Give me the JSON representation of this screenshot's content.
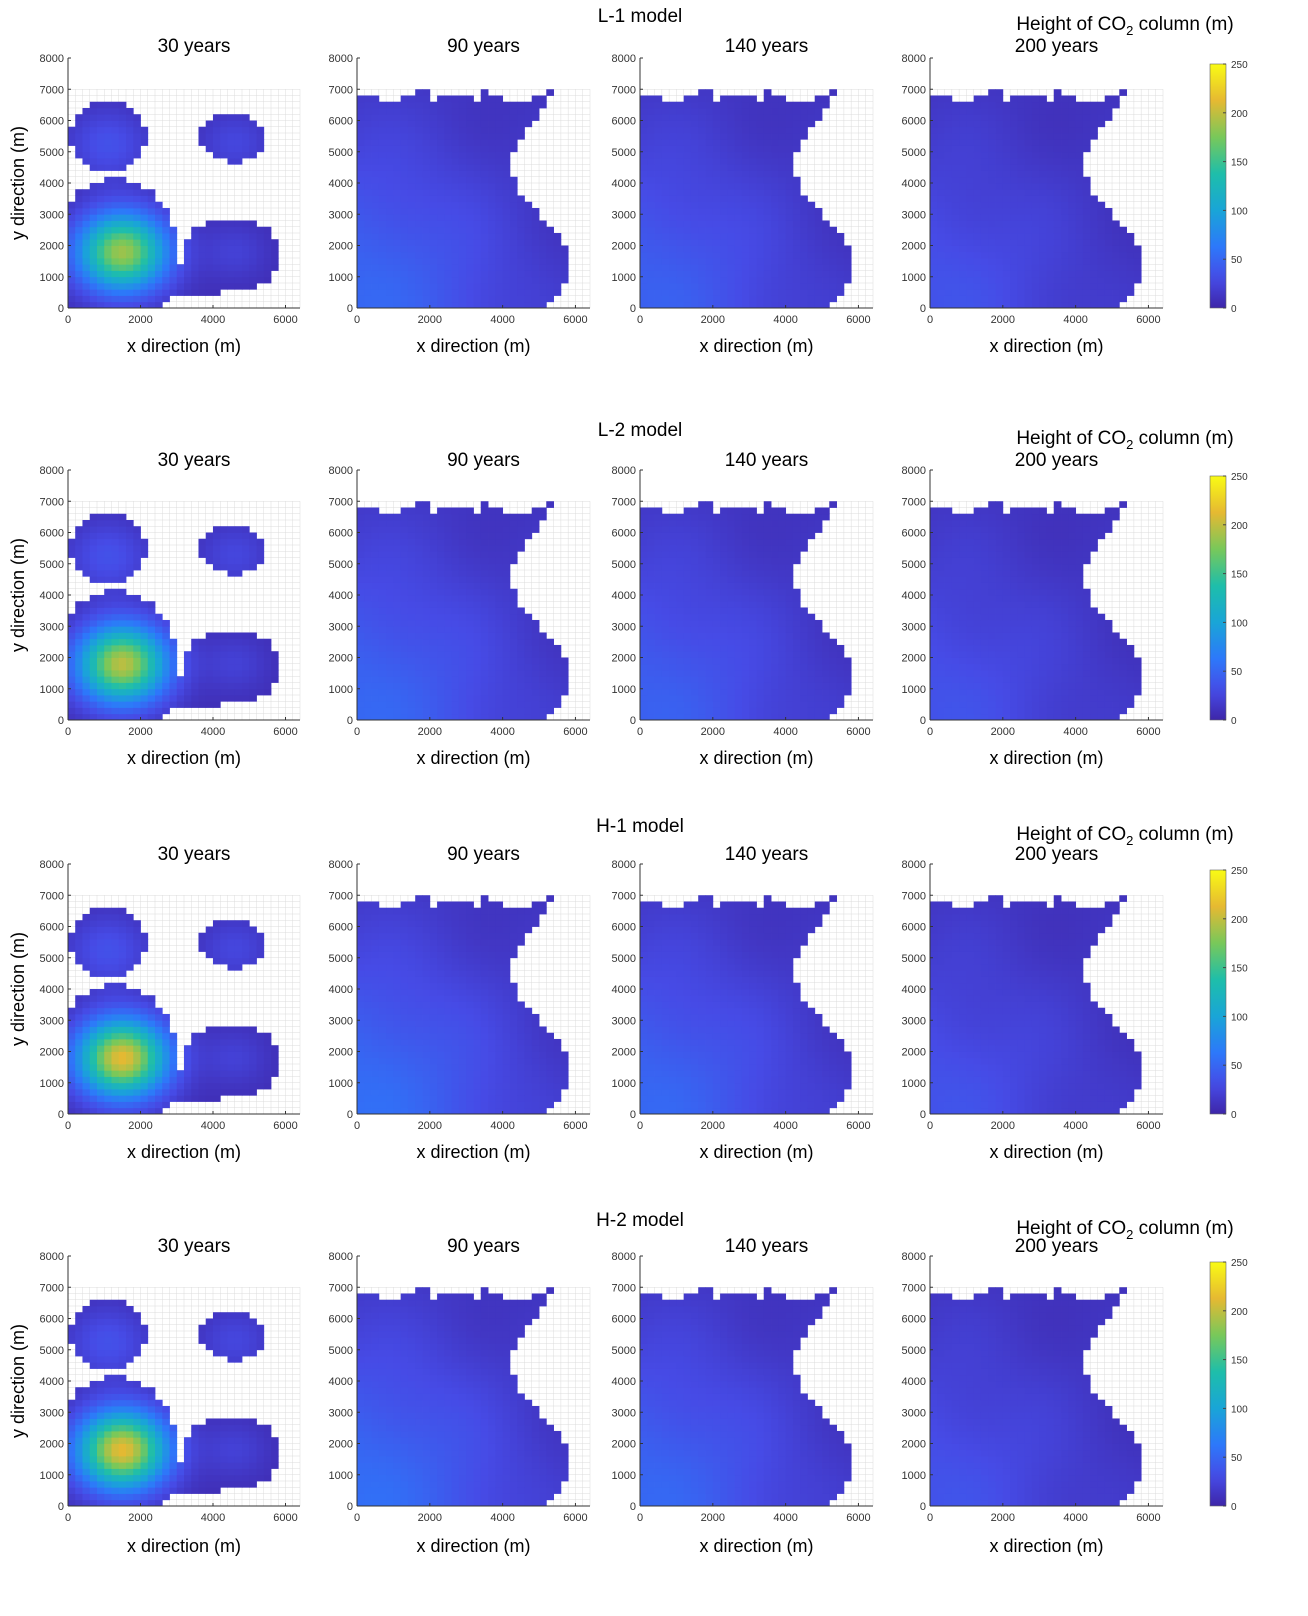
{
  "figure": {
    "colorbar_title_prefix": "Height of CO",
    "colorbar_title_sub": "2",
    "colorbar_title_suffix": " column (m)"
  },
  "chart_data": [
    {
      "model": "L-1 model",
      "type": "heatmap",
      "xlabel": "x direction (m)",
      "ylabel": "y direction (m)",
      "xlim": [
        0,
        6400
      ],
      "ylim": [
        0,
        8000
      ],
      "xticks": [
        0,
        2000,
        4000,
        6000
      ],
      "yticks": [
        0,
        1000,
        2000,
        3000,
        4000,
        5000,
        6000,
        7000,
        8000
      ],
      "colorbar": {
        "ticks": [
          0,
          50,
          100,
          150,
          200,
          250
        ],
        "range": [
          0,
          250
        ]
      },
      "panels": [
        {
          "title": "30 years",
          "plume": "early",
          "peak": 190
        },
        {
          "title": "90 years",
          "plume": "spread",
          "peak": 55
        },
        {
          "title": "140 years",
          "plume": "spread",
          "peak": 50
        },
        {
          "title": "200 years",
          "plume": "spread",
          "peak": 40
        }
      ]
    },
    {
      "model": "L-2 model",
      "type": "heatmap",
      "xlabel": "x direction (m)",
      "ylabel": "y direction (m)",
      "xlim": [
        0,
        6400
      ],
      "ylim": [
        0,
        8000
      ],
      "xticks": [
        0,
        2000,
        4000,
        6000
      ],
      "yticks": [
        0,
        1000,
        2000,
        3000,
        4000,
        5000,
        6000,
        7000,
        8000
      ],
      "colorbar": {
        "ticks": [
          0,
          50,
          100,
          150,
          200,
          250
        ],
        "range": [
          0,
          250
        ]
      },
      "panels": [
        {
          "title": "30 years",
          "plume": "early",
          "peak": 200
        },
        {
          "title": "90 years",
          "plume": "spread",
          "peak": 55
        },
        {
          "title": "140 years",
          "plume": "spread",
          "peak": 50
        },
        {
          "title": "200 years",
          "plume": "spread",
          "peak": 40
        }
      ]
    },
    {
      "model": "H-1 model",
      "type": "heatmap",
      "xlabel": "x direction (m)",
      "ylabel": "y direction (m)",
      "xlim": [
        0,
        6400
      ],
      "ylim": [
        0,
        8000
      ],
      "xticks": [
        0,
        2000,
        4000,
        6000
      ],
      "yticks": [
        0,
        1000,
        2000,
        3000,
        4000,
        5000,
        6000,
        7000,
        8000
      ],
      "colorbar": {
        "ticks": [
          0,
          50,
          100,
          150,
          200,
          250
        ],
        "range": [
          0,
          250
        ]
      },
      "panels": [
        {
          "title": "30 years",
          "plume": "early",
          "peak": 215
        },
        {
          "title": "90 years",
          "plume": "spread",
          "peak": 60
        },
        {
          "title": "140 years",
          "plume": "spread",
          "peak": 55
        },
        {
          "title": "200 years",
          "plume": "spread",
          "peak": 40
        }
      ]
    },
    {
      "model": "H-2 model",
      "type": "heatmap",
      "xlabel": "x direction (m)",
      "ylabel": "y direction (m)",
      "xlim": [
        0,
        6400
      ],
      "ylim": [
        0,
        8000
      ],
      "xticks": [
        0,
        2000,
        4000,
        6000
      ],
      "yticks": [
        0,
        1000,
        2000,
        3000,
        4000,
        5000,
        6000,
        7000,
        8000
      ],
      "colorbar": {
        "ticks": [
          0,
          50,
          100,
          150,
          200,
          250
        ],
        "range": [
          0,
          250
        ]
      },
      "panels": [
        {
          "title": "30 years",
          "plume": "early",
          "peak": 215
        },
        {
          "title": "90 years",
          "plume": "spread",
          "peak": 60
        },
        {
          "title": "140 years",
          "plume": "spread",
          "peak": 55
        },
        {
          "title": "200 years",
          "plume": "spread",
          "peak": 40
        }
      ]
    }
  ]
}
